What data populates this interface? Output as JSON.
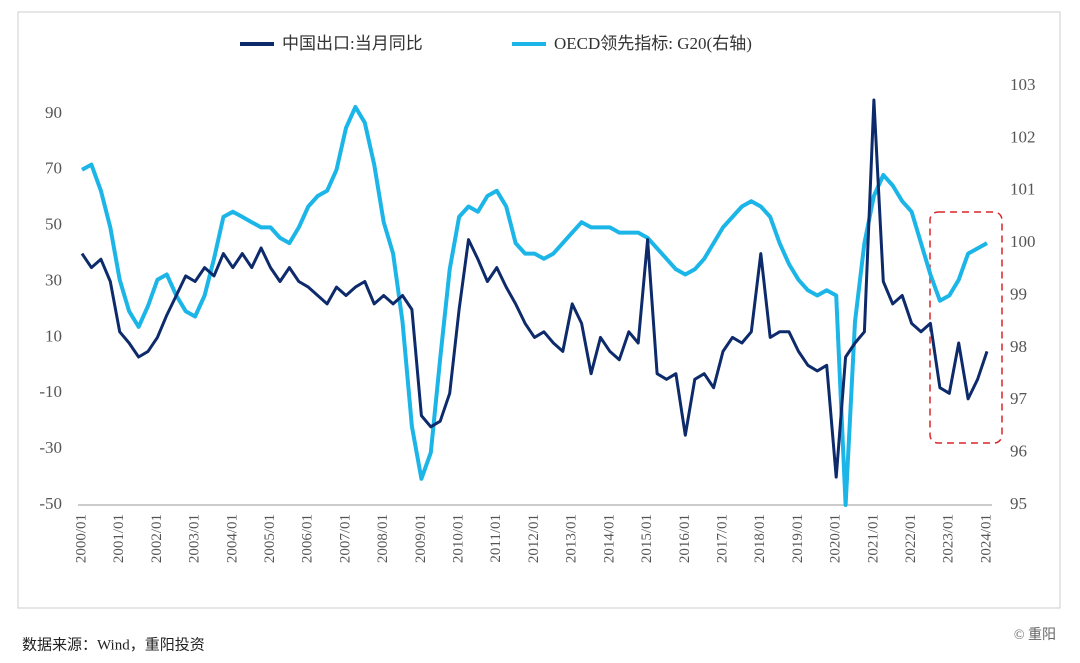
{
  "chart_data": {
    "type": "line",
    "categories": [
      "2000/01",
      "2000/04",
      "2000/07",
      "2000/10",
      "2001/01",
      "2001/04",
      "2001/07",
      "2001/10",
      "2002/01",
      "2002/04",
      "2002/07",
      "2002/10",
      "2003/01",
      "2003/04",
      "2003/07",
      "2003/10",
      "2004/01",
      "2004/04",
      "2004/07",
      "2004/10",
      "2005/01",
      "2005/04",
      "2005/07",
      "2005/10",
      "2006/01",
      "2006/04",
      "2006/07",
      "2006/10",
      "2007/01",
      "2007/04",
      "2007/07",
      "2007/10",
      "2008/01",
      "2008/04",
      "2008/07",
      "2008/10",
      "2009/01",
      "2009/04",
      "2009/07",
      "2009/10",
      "2010/01",
      "2010/04",
      "2010/07",
      "2010/10",
      "2011/01",
      "2011/04",
      "2011/07",
      "2011/10",
      "2012/01",
      "2012/04",
      "2012/07",
      "2012/10",
      "2013/01",
      "2013/04",
      "2013/07",
      "2013/10",
      "2014/01",
      "2014/04",
      "2014/07",
      "2014/10",
      "2015/01",
      "2015/04",
      "2015/07",
      "2015/10",
      "2016/01",
      "2016/04",
      "2016/07",
      "2016/10",
      "2017/01",
      "2017/04",
      "2017/07",
      "2017/10",
      "2018/01",
      "2018/04",
      "2018/07",
      "2018/10",
      "2019/01",
      "2019/04",
      "2019/07",
      "2019/10",
      "2020/01",
      "2020/04",
      "2020/07",
      "2020/10",
      "2021/01",
      "2021/04",
      "2021/07",
      "2021/10",
      "2022/01",
      "2022/04",
      "2022/07",
      "2022/10",
      "2023/01",
      "2023/04",
      "2023/07",
      "2023/10",
      "2024/01"
    ],
    "series": [
      {
        "name": "中国出口:当月同比",
        "color": "#0d2a6b",
        "values": [
          40,
          35,
          38,
          30,
          12,
          8,
          3,
          5,
          10,
          18,
          25,
          32,
          30,
          35,
          32,
          40,
          35,
          40,
          35,
          42,
          35,
          30,
          35,
          30,
          28,
          25,
          22,
          28,
          25,
          28,
          30,
          22,
          25,
          22,
          25,
          20,
          -18,
          -22,
          -20,
          -10,
          20,
          45,
          38,
          30,
          35,
          28,
          22,
          15,
          10,
          12,
          8,
          5,
          22,
          15,
          -3,
          10,
          5,
          2,
          12,
          8,
          45,
          -3,
          -5,
          -3,
          -25,
          -5,
          -3,
          -8,
          5,
          10,
          8,
          12,
          40,
          10,
          12,
          12,
          5,
          0,
          -2,
          0,
          -40,
          3,
          8,
          12,
          95,
          30,
          22,
          25,
          15,
          12,
          15,
          -8,
          -10,
          8,
          -12,
          -5,
          5
        ]
      },
      {
        "name": "OECD领先指标: G20(右轴)",
        "color": "#1cb5e8",
        "axis": "y2",
        "values": [
          101.4,
          101.5,
          101.0,
          100.3,
          99.3,
          98.7,
          98.4,
          98.8,
          99.3,
          99.4,
          99.0,
          98.7,
          98.6,
          99.0,
          99.7,
          100.5,
          100.6,
          100.5,
          100.4,
          100.3,
          100.3,
          100.1,
          100.0,
          100.3,
          100.7,
          100.9,
          101.0,
          101.4,
          102.2,
          102.6,
          102.3,
          101.5,
          100.4,
          99.8,
          98.5,
          96.5,
          95.5,
          96.0,
          97.8,
          99.5,
          100.5,
          100.7,
          100.6,
          100.9,
          101.0,
          100.7,
          100.0,
          99.8,
          99.8,
          99.7,
          99.8,
          100.0,
          100.2,
          100.4,
          100.3,
          100.3,
          100.3,
          100.2,
          100.2,
          100.2,
          100.1,
          99.9,
          99.7,
          99.5,
          99.4,
          99.5,
          99.7,
          100.0,
          100.3,
          100.5,
          100.7,
          100.8,
          100.7,
          100.5,
          100.0,
          99.6,
          99.3,
          99.1,
          99.0,
          99.1,
          99.0,
          95.0,
          98.5,
          100.0,
          100.9,
          101.3,
          101.1,
          100.8,
          100.6,
          100.0,
          99.4,
          98.9,
          99.0,
          99.3,
          99.8,
          99.9,
          100.0
        ]
      }
    ],
    "ylim": [
      -50,
      100
    ],
    "yticks": [
      -50,
      -30,
      -10,
      10,
      30,
      50,
      70,
      90
    ],
    "y2lim": [
      95,
      103
    ],
    "y2ticks": [
      95,
      96,
      97,
      98,
      99,
      100,
      101,
      102,
      103
    ],
    "source": "数据来源：Wind，重阳投资",
    "watermark": "© 重阳"
  }
}
